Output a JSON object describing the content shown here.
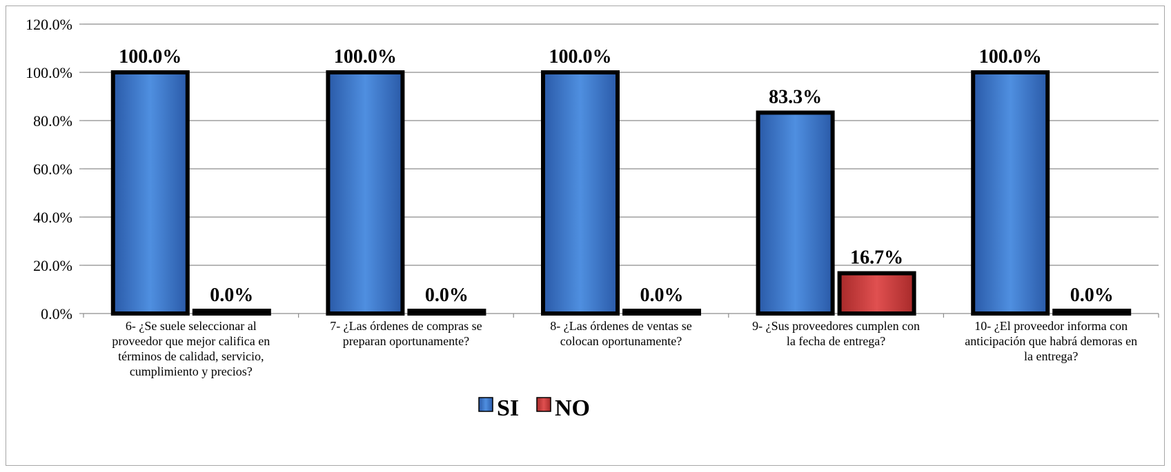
{
  "chart_data": {
    "type": "bar",
    "categories": [
      "6- ¿Se suele seleccionar al proveedor que mejor califica en términos de calidad, servicio, cumplimiento y precios?",
      "7- ¿Las órdenes de compras se preparan oportunamente?",
      "8- ¿Las órdenes de ventas se colocan oportunamente?",
      "9- ¿Sus proveedores cumplen con la fecha de entrega?",
      "10- ¿El proveedor informa con anticipación que habrá demoras en la entrega?"
    ],
    "category_lines": [
      [
        "6- ¿Se suele seleccionar al",
        "proveedor que mejor califica en",
        "términos de calidad, servicio,",
        "cumplimiento y precios?"
      ],
      [
        "7- ¿Las órdenes de compras se",
        "preparan oportunamente?"
      ],
      [
        "8- ¿Las órdenes de ventas se",
        "colocan oportunamente?"
      ],
      [
        "9- ¿Sus proveedores cumplen con",
        "la fecha de entrega?"
      ],
      [
        "10- ¿El proveedor informa con",
        "anticipación que habrá demoras en",
        "la entrega?"
      ]
    ],
    "series": [
      {
        "name": "SI",
        "values": [
          100.0,
          100.0,
          100.0,
          83.3,
          100.0
        ],
        "labels": [
          "100.0%",
          "100.0%",
          "100.0%",
          "83.3%",
          "100.0%"
        ],
        "color": "#3a73c8"
      },
      {
        "name": "NO",
        "values": [
          0.0,
          0.0,
          0.0,
          16.7,
          0.0
        ],
        "labels": [
          "0.0%",
          "0.0%",
          "0.0%",
          "16.7%",
          "0.0%"
        ],
        "color": "#c83a3a"
      }
    ],
    "ylim": [
      0,
      120
    ],
    "yticks": [
      "0.0%",
      "20.0%",
      "40.0%",
      "60.0%",
      "80.0%",
      "100.0%",
      "120.0%"
    ],
    "grid": true,
    "legend_position": "bottom-center",
    "title": "",
    "xlabel": "",
    "ylabel": ""
  }
}
